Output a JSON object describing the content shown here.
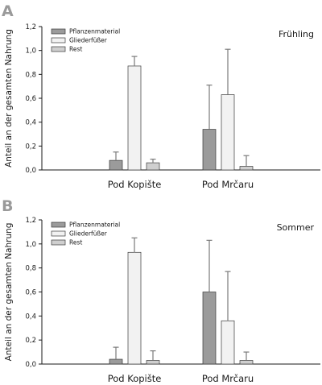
{
  "chart_data": [
    {
      "type": "bar",
      "panel": "A",
      "title": "Frühling",
      "ylabel": "Anteil an der gesamten Nahrung",
      "xlabel": "",
      "ylim": [
        0,
        1.2
      ],
      "yticks": [
        "0,0",
        "0,2",
        "0,4",
        "0,6",
        "0,8",
        "1,0",
        "1,2"
      ],
      "categories": [
        "Pod Kopište",
        "Pod Mrčaru"
      ],
      "legend_position": "top-left",
      "grid": false,
      "series": [
        {
          "name": "Pflanzenmaterial",
          "color": "#9b9b9b",
          "values": [
            0.08,
            0.34
          ],
          "errors": [
            0.07,
            0.37
          ]
        },
        {
          "name": "Gliederfüßer",
          "color": "#f2f2f2",
          "values": [
            0.87,
            0.63
          ],
          "errors": [
            0.08,
            0.38
          ]
        },
        {
          "name": "Rest",
          "color": "#cfcfcf",
          "values": [
            0.06,
            0.03
          ],
          "errors": [
            0.03,
            0.09
          ]
        }
      ]
    },
    {
      "type": "bar",
      "panel": "B",
      "title": "Sommer",
      "ylabel": "Anteil an der gesamten Nahrung",
      "xlabel": "",
      "ylim": [
        0,
        1.2
      ],
      "yticks": [
        "0,0",
        "0,2",
        "0,4",
        "0,6",
        "0,8",
        "1,0",
        "1,2"
      ],
      "categories": [
        "Pod Kopište",
        "Pod Mrčaru"
      ],
      "legend_position": "top-left",
      "grid": false,
      "series": [
        {
          "name": "Pflanzenmaterial",
          "color": "#9b9b9b",
          "values": [
            0.04,
            0.6
          ],
          "errors": [
            0.1,
            0.43
          ]
        },
        {
          "name": "Gliederfüßer",
          "color": "#f2f2f2",
          "values": [
            0.93,
            0.36
          ],
          "errors": [
            0.12,
            0.41
          ]
        },
        {
          "name": "Rest",
          "color": "#cfcfcf",
          "values": [
            0.03,
            0.03
          ],
          "errors": [
            0.08,
            0.07
          ]
        }
      ]
    }
  ]
}
